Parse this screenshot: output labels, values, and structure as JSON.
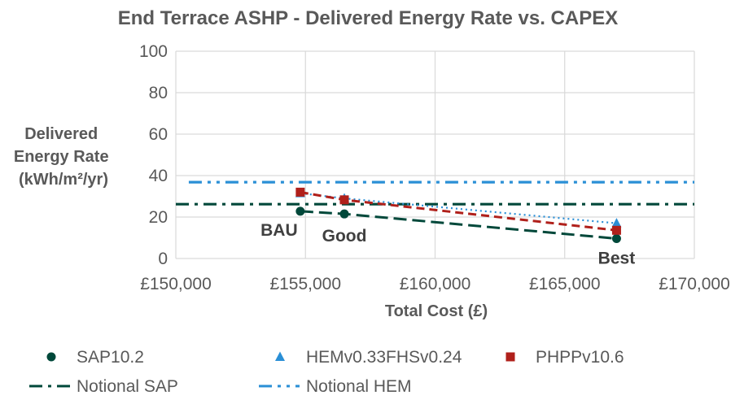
{
  "chart_data": {
    "type": "scatter",
    "title": "End Terrace ASHP - Delivered Energy Rate vs. CAPEX",
    "xlabel": "Total Cost (£)",
    "ylabel_lines": [
      "Delivered",
      "Energy Rate",
      "(kWh/m²/yr)"
    ],
    "xlim": [
      150000,
      170000
    ],
    "ylim": [
      0,
      100
    ],
    "x_ticks": [
      150000,
      155000,
      160000,
      165000,
      170000
    ],
    "x_tick_labels": [
      "£150,000",
      "£155,000",
      "£160,000",
      "£165,000",
      "£170,000"
    ],
    "y_ticks": [
      0,
      20,
      40,
      60,
      80,
      100
    ],
    "y_tick_labels": [
      "0",
      "20",
      "40",
      "60",
      "80",
      "100"
    ],
    "grid": true,
    "legend_position": "bottom",
    "series": [
      {
        "name": "SAP10.2",
        "marker": "circle",
        "color": "#00483a",
        "line": "long-dash",
        "x": [
          154800,
          156500,
          167000
        ],
        "y": [
          22.8,
          21.5,
          9.6
        ]
      },
      {
        "name": "HEMv0.33FHSv0.24",
        "marker": "triangle",
        "color": "#2a8fd6",
        "line": "dotted",
        "x": [
          154800,
          156500,
          167000
        ],
        "y": [
          31.5,
          29.0,
          17.0
        ]
      },
      {
        "name": "PHPPv10.6",
        "marker": "square",
        "color": "#b0201b",
        "line": "dashed",
        "x": [
          154800,
          156500,
          167000
        ],
        "y": [
          32.0,
          28.3,
          13.6
        ]
      }
    ],
    "reference_lines": [
      {
        "name": "Notional SAP",
        "color": "#00483a",
        "line": "dash-dot",
        "y": 26.2,
        "x_from": 150000
      },
      {
        "name": "Notional HEM",
        "color": "#2a8fd6",
        "line": "dash-dot-dot",
        "y": 36.8,
        "x_from": 150500
      }
    ],
    "annotations": [
      {
        "text": "BAU",
        "x": 154800,
        "y": 22.8
      },
      {
        "text": "Good",
        "x": 156500,
        "y": 21.5
      },
      {
        "text": "Best",
        "x": 167000,
        "y": 9.6
      }
    ]
  }
}
